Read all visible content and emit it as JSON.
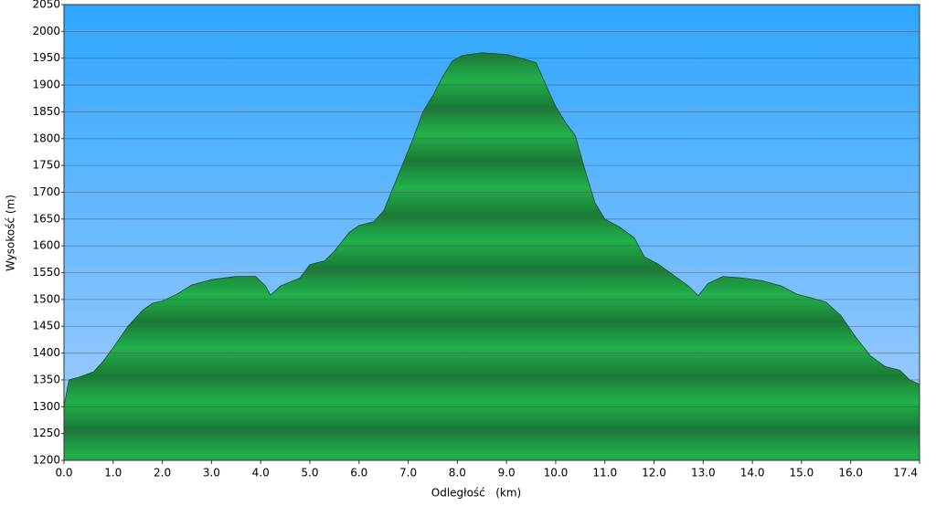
{
  "chart_data": {
    "type": "area",
    "xlabel": "Odległość   (km)",
    "ylabel": "Wysokość (m)",
    "x": [
      0.0,
      0.1,
      0.3,
      0.6,
      0.8,
      1.0,
      1.3,
      1.6,
      1.8,
      2.0,
      2.3,
      2.6,
      3.0,
      3.5,
      3.9,
      4.1,
      4.2,
      4.4,
      4.8,
      5.0,
      5.3,
      5.5,
      5.8,
      6.0,
      6.3,
      6.5,
      6.7,
      6.9,
      7.1,
      7.3,
      7.5,
      7.7,
      7.9,
      8.1,
      8.5,
      9.0,
      9.3,
      9.6,
      9.8,
      10.0,
      10.2,
      10.4,
      10.6,
      10.8,
      11.0,
      11.3,
      11.6,
      11.8,
      12.1,
      12.4,
      12.7,
      12.9,
      13.1,
      13.4,
      13.8,
      14.2,
      14.6,
      14.9,
      15.2,
      15.5,
      15.8,
      16.1,
      16.4,
      16.7,
      17.0,
      17.2,
      17.4
    ],
    "values": [
      1300,
      1350,
      1355,
      1365,
      1385,
      1410,
      1450,
      1480,
      1493,
      1497,
      1510,
      1527,
      1537,
      1543,
      1543,
      1525,
      1508,
      1525,
      1540,
      1565,
      1572,
      1590,
      1625,
      1638,
      1645,
      1665,
      1710,
      1755,
      1800,
      1850,
      1880,
      1915,
      1945,
      1955,
      1960,
      1957,
      1950,
      1942,
      1900,
      1860,
      1830,
      1805,
      1740,
      1680,
      1650,
      1635,
      1615,
      1580,
      1565,
      1545,
      1525,
      1507,
      1530,
      1543,
      1540,
      1535,
      1525,
      1510,
      1503,
      1495,
      1470,
      1430,
      1395,
      1375,
      1368,
      1350,
      1342
    ],
    "color": "#22aa44",
    "xlim": [
      0,
      17.4
    ],
    "ylim": [
      1200,
      2050
    ],
    "xticks": [
      {
        "value": 0,
        "label": "0.0"
      },
      {
        "value": 1,
        "label": "1.0"
      },
      {
        "value": 2,
        "label": "2.0"
      },
      {
        "value": 3,
        "label": "3.0"
      },
      {
        "value": 4,
        "label": "4.0"
      },
      {
        "value": 5,
        "label": "5.0"
      },
      {
        "value": 6,
        "label": "6.0"
      },
      {
        "value": 7,
        "label": "7.0"
      },
      {
        "value": 8,
        "label": "8.0"
      },
      {
        "value": 9,
        "label": "9.0"
      },
      {
        "value": 10,
        "label": "10.0"
      },
      {
        "value": 11,
        "label": "11.0"
      },
      {
        "value": 12,
        "label": "12.0"
      },
      {
        "value": 13,
        "label": "13.0"
      },
      {
        "value": 14,
        "label": "14.0"
      },
      {
        "value": 15,
        "label": "15.0"
      },
      {
        "value": 16,
        "label": "16.0"
      },
      17.4
    ],
    "yticks": [
      1200,
      1250,
      1300,
      1350,
      1400,
      1450,
      1500,
      1550,
      1600,
      1650,
      1700,
      1750,
      1800,
      1850,
      1900,
      1950,
      2000,
      2050
    ],
    "grid": true
  }
}
